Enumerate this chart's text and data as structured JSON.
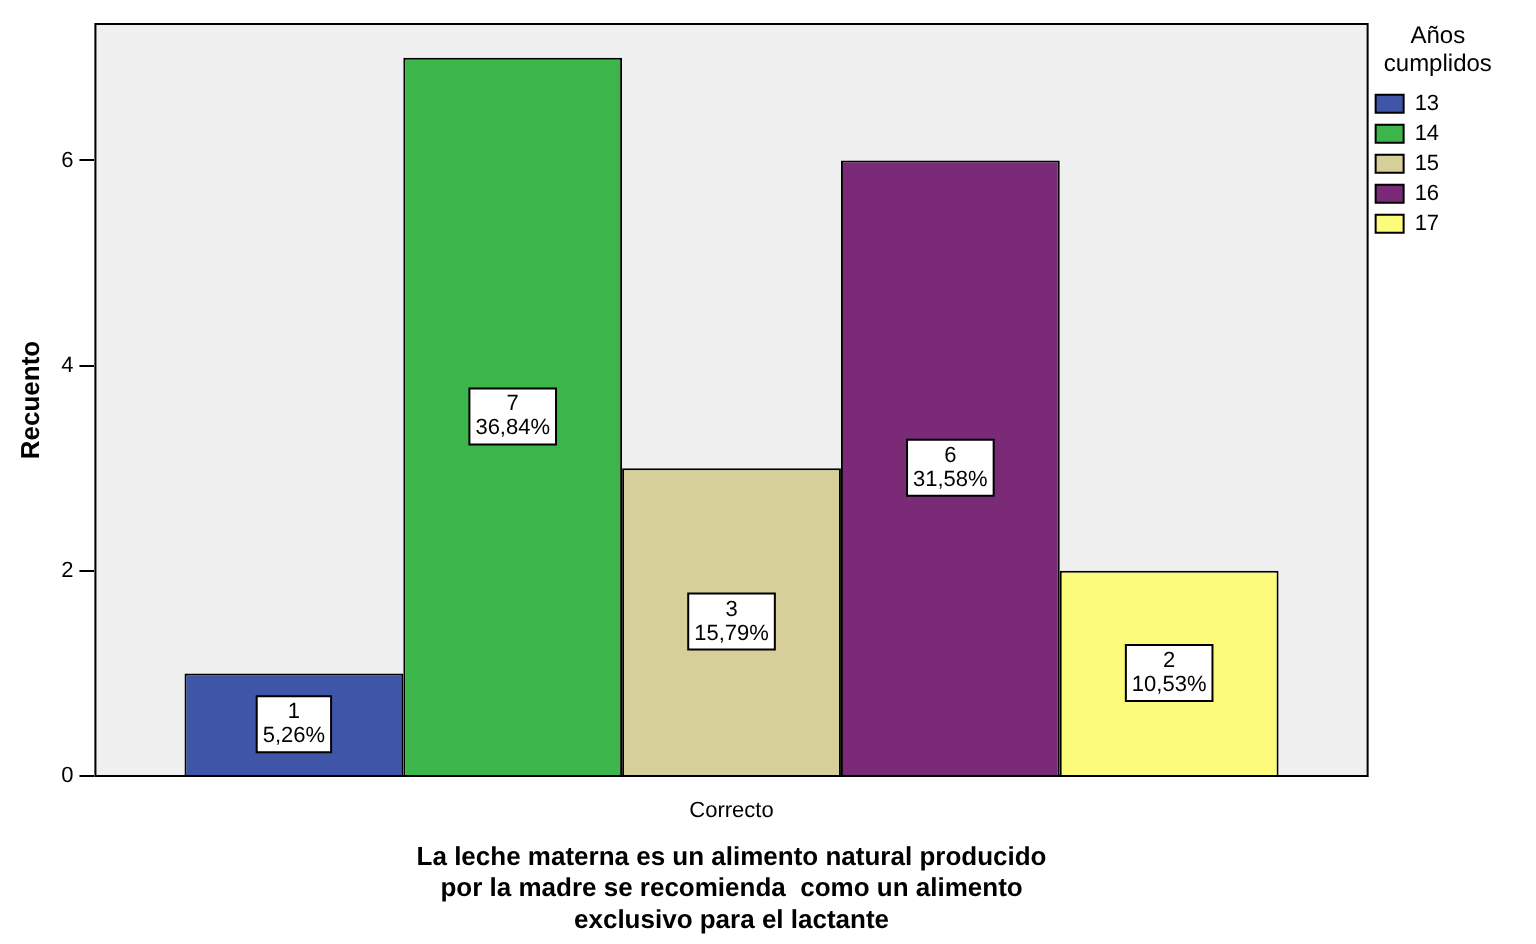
{
  "chart_data": {
    "type": "bar",
    "categories": [
      "Correcto"
    ],
    "series": [
      {
        "name": "13",
        "color": "#3f55a7",
        "values": [
          1
        ],
        "value_labels": [
          "1\n5,26%"
        ]
      },
      {
        "name": "14",
        "color": "#3cb54a",
        "values": [
          7
        ],
        "value_labels": [
          "7\n36,84%"
        ]
      },
      {
        "name": "15",
        "color": "#d6cf9a",
        "values": [
          3
        ],
        "value_labels": [
          "3\n15,79%"
        ]
      },
      {
        "name": "16",
        "color": "#7b2a78",
        "values": [
          6
        ],
        "value_labels": [
          "6\n31,58%"
        ]
      },
      {
        "name": "17",
        "color": "#fdfb7b",
        "values": [
          2
        ],
        "value_labels": [
          "2\n10,53%"
        ]
      }
    ],
    "xlabel": "La leche materna es un alimento natural producido\npor la madre se recomienda  como un alimento\nexclusivo para el lactante",
    "ylabel": "Recuento",
    "legend_title": "Años cumplidos",
    "legend": "top right",
    "ylim": [
      0,
      7.33
    ],
    "yticks": [
      0,
      2,
      4,
      6
    ],
    "grid": false
  }
}
